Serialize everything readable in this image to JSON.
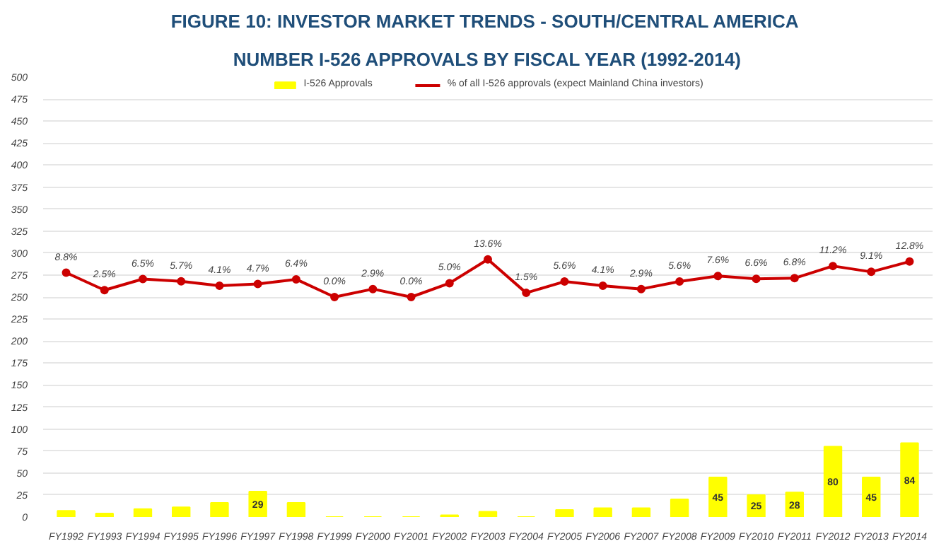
{
  "chart_data": {
    "type": "bar",
    "title": "FIGURE 10: INVESTOR MARKET TRENDS - SOUTH/CENTRAL  AMERICA",
    "subtitle": "NUMBER I-526 APPROVALS BY FISCAL YEAR (1992-2014)",
    "categories": [
      "FY1992",
      "FY1993",
      "FY1994",
      "FY1995",
      "FY1996",
      "FY1997",
      "FY1998",
      "FY1999",
      "FY2000",
      "FY2001",
      "FY2002",
      "FY2003",
      "FY2004",
      "FY2005",
      "FY2006",
      "FY2007",
      "FY2008",
      "FY2009",
      "FY2010",
      "FY2011",
      "FY2012",
      "FY2013",
      "FY2014"
    ],
    "series": [
      {
        "name": "I-526 Approvals",
        "color": "#ffff00",
        "values": [
          7,
          4,
          9,
          11,
          16,
          29,
          16,
          0,
          0,
          0,
          2,
          6,
          0,
          8,
          10,
          10,
          20,
          45,
          25,
          28,
          80,
          45,
          84
        ],
        "value_labels": [
          null,
          null,
          null,
          null,
          null,
          "29",
          null,
          null,
          null,
          null,
          null,
          null,
          null,
          null,
          null,
          null,
          null,
          "45",
          "25",
          "28",
          "80",
          "45",
          "84"
        ]
      },
      {
        "name": "% of all I-526 approvals (expect Mainland China investors)",
        "type": "line",
        "axis": "y2",
        "color": "#cc0000",
        "marker": "circle",
        "values": [
          8.8,
          2.5,
          6.5,
          5.7,
          4.1,
          4.7,
          6.4,
          0.0,
          2.9,
          0.0,
          5.0,
          13.6,
          1.5,
          5.6,
          4.1,
          2.9,
          5.6,
          7.6,
          6.6,
          6.8,
          11.2,
          9.1,
          12.8
        ],
        "value_labels": [
          "8.8%",
          "2.5%",
          "6.5%",
          "5.7%",
          "4.1%",
          "4.7%",
          "6.4%",
          "0.0%",
          "2.9%",
          "0.0%",
          "5.0%",
          "13.6%",
          "1.5%",
          "5.6%",
          "4.1%",
          "2.9%",
          "5.6%",
          "7.6%",
          "6.6%",
          "6.8%",
          "11.2%",
          "9.1%",
          "12.8%"
        ]
      }
    ],
    "ylim": [
      0,
      500
    ],
    "yticks": [
      0,
      25,
      50,
      75,
      100,
      125,
      150,
      175,
      200,
      225,
      250,
      275,
      300,
      325,
      350,
      375,
      400,
      425,
      450,
      475,
      500
    ],
    "y2lim": [
      -79.4,
      79.4
    ],
    "grid": "y",
    "legend": "top"
  }
}
